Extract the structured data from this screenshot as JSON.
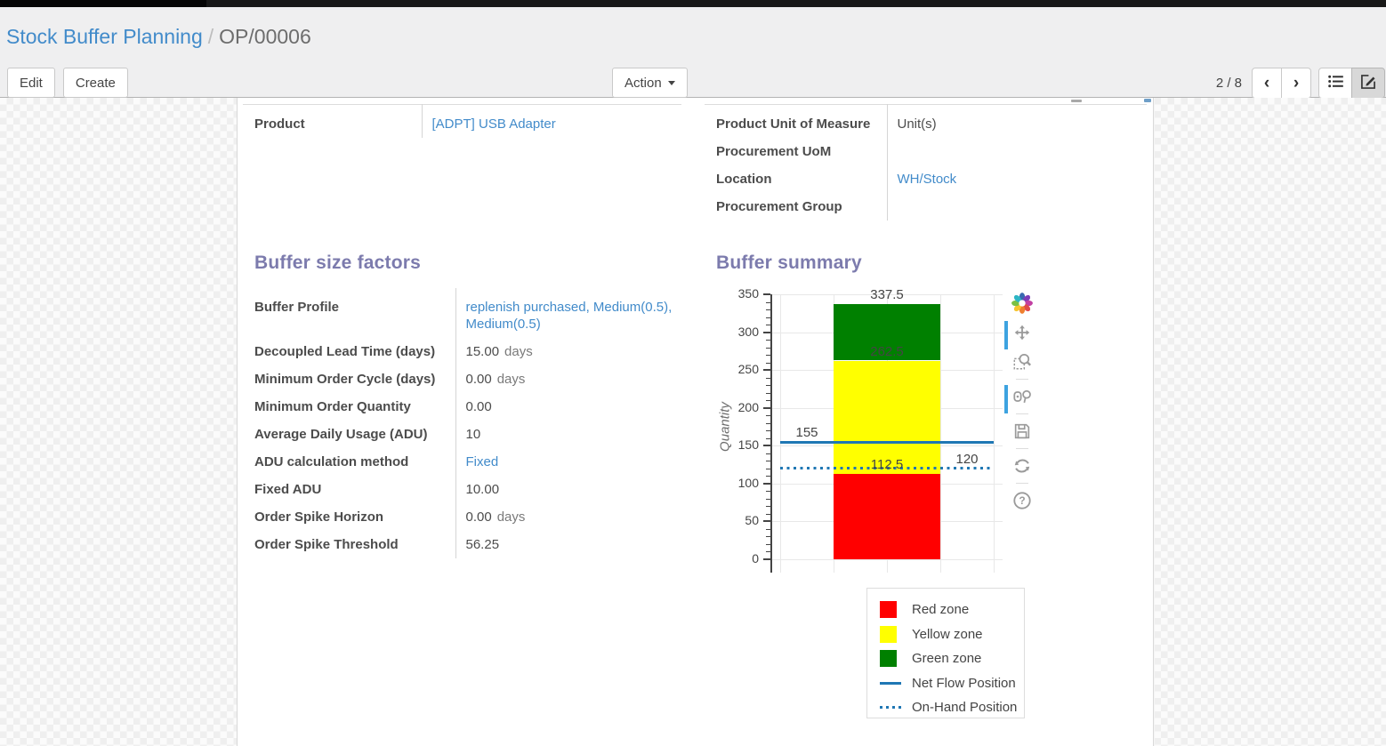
{
  "breadcrumb": {
    "parent": "Stock Buffer Planning",
    "separator": "/",
    "current": "OP/00006"
  },
  "toolbar": {
    "edit_label": "Edit",
    "create_label": "Create",
    "action_label": "Action",
    "pager": "2 / 8",
    "prev_glyph": "‹",
    "next_glyph": "›"
  },
  "form": {
    "product_group": {
      "left": [
        {
          "label": "Product",
          "value": "[ADPT] USB Adapter",
          "link": true
        }
      ],
      "right": [
        {
          "label": "Product Unit of Measure",
          "value": "Unit(s)",
          "link": false
        },
        {
          "label": "Procurement UoM",
          "value": "",
          "link": false
        },
        {
          "label": "Location",
          "value": "WH/Stock",
          "link": true
        },
        {
          "label": "Procurement Group",
          "value": "",
          "link": false
        }
      ]
    },
    "buffer_factors": {
      "title": "Buffer size factors",
      "rows": [
        {
          "label": "Buffer Profile",
          "value": "replenish purchased, Medium(0.5), Medium(0.5)",
          "link": true
        },
        {
          "label": "Decoupled Lead Time (days)",
          "value": "15.00",
          "suffix": "days"
        },
        {
          "label": "Minimum Order Cycle (days)",
          "value": "0.00",
          "suffix": "days"
        },
        {
          "label": "Minimum Order Quantity",
          "value": "0.00"
        },
        {
          "label": "Average Daily Usage (ADU)",
          "value": "10"
        },
        {
          "label": "ADU calculation method",
          "value": "Fixed",
          "link": true
        },
        {
          "label": "Fixed ADU",
          "value": "10.00"
        },
        {
          "label": "Order Spike Horizon",
          "value": "0.00",
          "suffix": "days"
        },
        {
          "label": "Order Spike Threshold",
          "value": "56.25"
        }
      ]
    },
    "buffer_summary": {
      "title": "Buffer summary"
    }
  },
  "chart_data": {
    "type": "bar",
    "title": "Buffer summary",
    "xlabel": "",
    "ylabel": "Quantity",
    "ylim": [
      0,
      350
    ],
    "yticks": [
      0,
      50,
      100,
      150,
      200,
      250,
      300,
      350
    ],
    "minor_tick_step": 10,
    "grid": true,
    "stacked_zones": [
      {
        "label": "Red zone",
        "from": 0,
        "to": 112.5,
        "color": "#ff0000"
      },
      {
        "label": "Yellow zone",
        "from": 112.5,
        "to": 262.5,
        "color": "#ffff00"
      },
      {
        "label": "Green zone",
        "from": 262.5,
        "to": 337.5,
        "color": "#008000"
      }
    ],
    "lines": [
      {
        "label": "Net Flow Position",
        "value": 155,
        "style": "solid",
        "color": "#1f77b4"
      },
      {
        "label": "On-Hand Position",
        "value": 120,
        "style": "dotted",
        "color": "#1f77b4"
      }
    ],
    "annotations": [
      {
        "text": "337.5",
        "value": 337.5,
        "anchor": "bar"
      },
      {
        "text": "262.5",
        "value": 262.5,
        "anchor": "bar"
      },
      {
        "text": "112.5",
        "value": 112.5,
        "anchor": "bar"
      },
      {
        "text": "155",
        "value": 155,
        "anchor": "left"
      },
      {
        "text": "120",
        "value": 120,
        "anchor": "right"
      }
    ],
    "legend": {
      "position": "below-right",
      "entries": [
        {
          "label": "Red zone",
          "swatch": "square",
          "color": "#ff0000"
        },
        {
          "label": "Yellow zone",
          "swatch": "square",
          "color": "#ffff00"
        },
        {
          "label": "Green zone",
          "swatch": "square",
          "color": "#008000"
        },
        {
          "label": "Net Flow Position",
          "swatch": "line",
          "color": "#1f77b4"
        },
        {
          "label": "On-Hand Position",
          "swatch": "dotted-line",
          "color": "#1f77b4"
        }
      ]
    },
    "toolbar_icons": [
      "plotly-logo",
      "pan",
      "box-zoom",
      "select",
      "save",
      "reset-axes",
      "help"
    ]
  },
  "colors": {
    "accent_purple": "#7c7bad",
    "link_blue": "#428bca",
    "line_blue": "#1f77b4"
  }
}
